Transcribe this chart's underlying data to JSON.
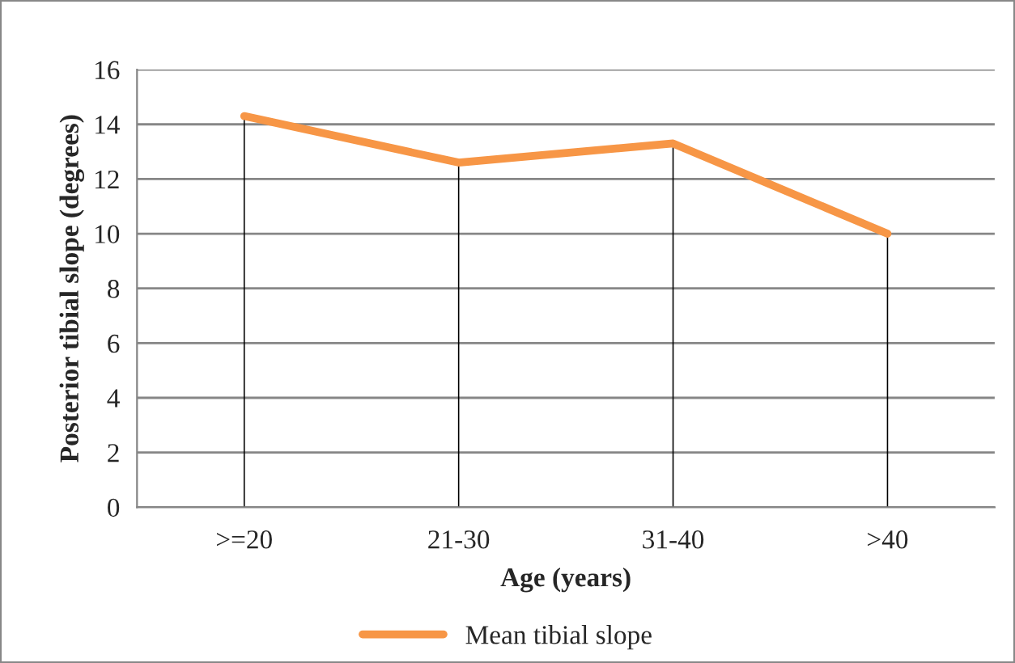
{
  "chart_data": {
    "type": "line",
    "xlabel": "Age (years)",
    "ylabel": "Posterior tibial slope (degrees)",
    "categories": [
      ">=20",
      "21-30",
      "31-40",
      ">40"
    ],
    "series": [
      {
        "type": "bar",
        "color": "#000000",
        "values": [
          14.3,
          12.6,
          13.3,
          10.0
        ]
      },
      {
        "name": "Mean tibial slope",
        "color": "#f79646",
        "values": [
          14.3,
          12.6,
          13.3,
          10.0
        ]
      }
    ],
    "ylim": [
      0,
      16
    ],
    "yticks": [
      0,
      2,
      4,
      6,
      8,
      10,
      12,
      14,
      16
    ],
    "grid": "y",
    "legend": "bottom",
    "marker": "none",
    "line_style": "solid"
  }
}
